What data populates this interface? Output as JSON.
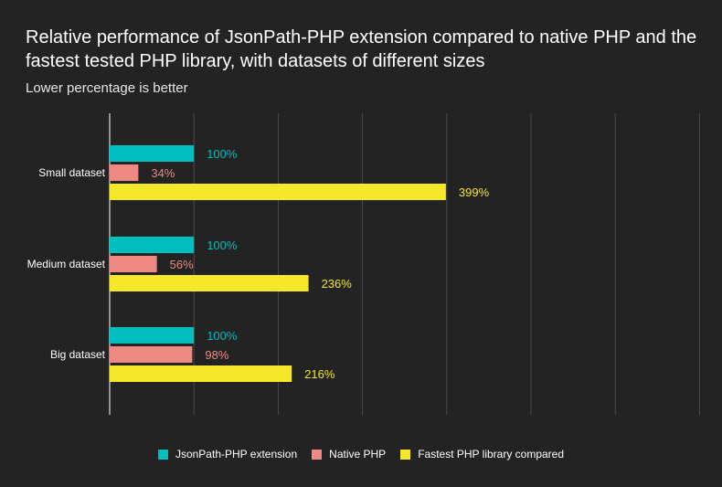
{
  "chart_data": {
    "type": "bar",
    "orientation": "horizontal",
    "title": "Relative performance of JsonPath-PHP extension compared to native PHP and the fastest tested PHP library, with datasets of different sizes",
    "subtitle": "Lower percentage is better",
    "categories": [
      "Small dataset",
      "Medium dataset",
      "Big dataset"
    ],
    "series": [
      {
        "name": "JsonPath-PHP extension",
        "color": "#00bfbf",
        "values": [
          100,
          100,
          100
        ],
        "labels": [
          "100%",
          "100%",
          "100%"
        ]
      },
      {
        "name": "Native PHP",
        "color": "#ee8a83",
        "values": [
          34,
          56,
          98
        ],
        "labels": [
          "34%",
          "56%",
          "98%"
        ]
      },
      {
        "name": "Fastest PHP library compared",
        "color": "#f5e72a",
        "values": [
          399,
          236,
          216
        ],
        "labels": [
          "399%",
          "236%",
          "216%"
        ]
      }
    ],
    "xlim": [
      0,
      700
    ],
    "grid": true,
    "legend": "bottom"
  }
}
